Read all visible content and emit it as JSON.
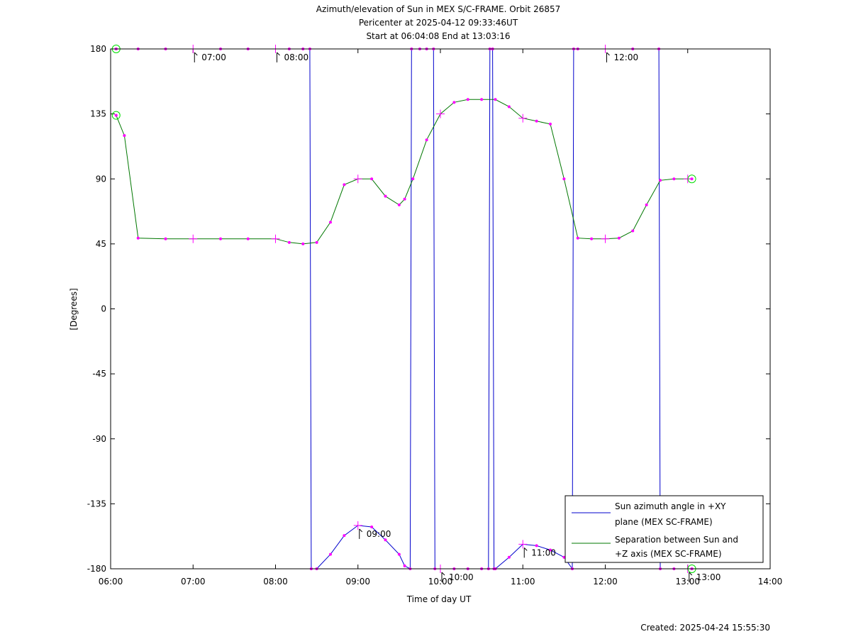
{
  "chart_data": {
    "type": "line",
    "title": "Azimuth/elevation of Sun in MEX S/C-FRAME.  Orbit 26857",
    "subtitle_lines": [
      "Pericenter at 2025-04-12 09:33:46UT",
      "Start at 06:04:08 End at 13:03:16"
    ],
    "xlabel": "Time of day UT",
    "ylabel": "[Degrees]",
    "xlim": [
      "06:00",
      "14:00"
    ],
    "ylim": [
      -180,
      180
    ],
    "x_ticks": [
      "06:00",
      "07:00",
      "08:00",
      "09:00",
      "10:00",
      "11:00",
      "12:00",
      "13:00",
      "14:00"
    ],
    "y_ticks": [
      "180",
      "135",
      "90",
      "45",
      "0",
      "-45",
      "-90",
      "-135",
      "-180"
    ],
    "legend_position": "bottom-right",
    "series": [
      {
        "name": "Sun azimuth angle in +XY plane (MEX SC-FRAME)",
        "legend_lines": [
          "Sun azimuth angle in +XY",
          "plane (MEX SC-FRAME)"
        ],
        "color": "#0000cc",
        "x": [
          "06:04",
          "06:20",
          "06:40",
          "07:00",
          "07:20",
          "07:40",
          "08:00",
          "08:10",
          "08:20",
          "08:25",
          "08:26",
          "08:30",
          "08:40",
          "08:50",
          "09:00",
          "09:10",
          "09:20",
          "09:30",
          "09:34",
          "09:38",
          "09:39",
          "09:45",
          "09:50",
          "09:55",
          "09:56",
          "10:00",
          "10:10",
          "10:20",
          "10:30",
          "10:35",
          "10:36",
          "10:38",
          "10:39",
          "10:40",
          "10:50",
          "11:00",
          "11:10",
          "11:20",
          "11:30",
          "11:36",
          "11:37",
          "11:40",
          "12:00",
          "12:20",
          "12:39",
          "12:40",
          "12:50",
          "13:00",
          "13:03"
        ],
        "y": [
          180,
          180,
          180,
          180,
          180,
          180,
          180,
          180,
          180,
          180,
          -180,
          -180,
          -170,
          -157,
          -150,
          -151,
          -160,
          -170,
          -178,
          -180,
          180,
          180,
          180,
          180,
          -180,
          -180,
          -180,
          -180,
          -180,
          -180,
          180,
          180,
          -180,
          -180,
          -172,
          -163,
          -164,
          -167,
          -172,
          -180,
          180,
          180,
          180,
          180,
          180,
          -180,
          -180,
          -180,
          -180
        ]
      },
      {
        "name": "Separation between Sun and +Z axis (MEX SC-FRAME)",
        "legend_lines": [
          "Separation between Sun and",
          "+Z axis (MEX SC-FRAME)"
        ],
        "color": "#007700",
        "x": [
          "06:04",
          "06:10",
          "06:20",
          "06:40",
          "07:00",
          "07:20",
          "07:40",
          "08:00",
          "08:10",
          "08:20",
          "08:30",
          "08:40",
          "08:50",
          "09:00",
          "09:10",
          "09:20",
          "09:30",
          "09:34",
          "09:40",
          "09:50",
          "10:00",
          "10:10",
          "10:20",
          "10:30",
          "10:40",
          "10:50",
          "11:00",
          "11:10",
          "11:20",
          "11:30",
          "11:40",
          "11:50",
          "12:00",
          "12:10",
          "12:20",
          "12:30",
          "12:40",
          "12:50",
          "13:00",
          "13:03"
        ],
        "y": [
          134,
          120,
          49,
          48.5,
          48.5,
          48.5,
          48.5,
          48.5,
          46,
          45,
          46,
          60,
          86,
          90,
          90,
          78,
          72,
          76,
          90,
          117,
          135,
          143,
          145,
          145,
          145,
          140,
          132,
          130,
          128,
          90,
          49,
          48.5,
          48.5,
          49,
          54,
          72,
          89,
          90,
          90,
          90
        ]
      }
    ],
    "annotations": [
      {
        "text": "07:00",
        "series": 0,
        "x": "07:00",
        "y": 180
      },
      {
        "text": "08:00",
        "series": 0,
        "x": "08:00",
        "y": 180
      },
      {
        "text": "09:00",
        "series": 0,
        "x": "09:00",
        "y": -150
      },
      {
        "text": "10:00",
        "series": 0,
        "x": "10:00",
        "y": -180
      },
      {
        "text": "11:00",
        "series": 0,
        "x": "11:00",
        "y": -163
      },
      {
        "text": "12:00",
        "series": 0,
        "x": "12:00",
        "y": 180
      },
      {
        "text": "13:00",
        "series": 0,
        "x": "13:00",
        "y": -180
      }
    ],
    "footer": "Created: 2025-04-24 15:55:30"
  }
}
